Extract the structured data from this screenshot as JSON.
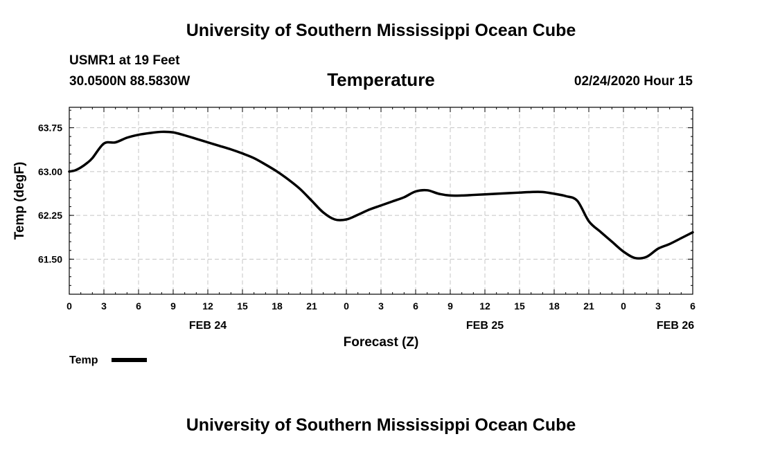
{
  "header": {
    "title": "University of Southern Mississippi Ocean Cube",
    "station": "USMR1 at 19 Feet",
    "location": "30.0500N 88.5830W",
    "date": "02/24/2020 Hour 15"
  },
  "footer": {
    "title": "University of Southern Mississippi Ocean Cube"
  },
  "chart_data": {
    "type": "line",
    "title": "Temperature",
    "xlabel": "Forecast (Z)",
    "ylabel": "Temp (degF)",
    "xlim": [
      0,
      54
    ],
    "ylim": [
      60.9,
      64.1
    ],
    "grid": true,
    "x_tick_hours": [
      0,
      3,
      6,
      9,
      12,
      15,
      18,
      21,
      24,
      27,
      30,
      33,
      36,
      39,
      42,
      45,
      48,
      51,
      54
    ],
    "x_tick_labels": [
      "0",
      "3",
      "6",
      "9",
      "12",
      "15",
      "18",
      "21",
      "0",
      "3",
      "6",
      "9",
      "12",
      "15",
      "18",
      "21",
      "0",
      "3",
      "6"
    ],
    "y_ticks": [
      61.5,
      62.25,
      63.0,
      63.75
    ],
    "y_tick_labels": [
      "61.50",
      "62.25",
      "63.00",
      "63.75"
    ],
    "date_labels": [
      {
        "hour": 12,
        "label": "FEB 24"
      },
      {
        "hour": 36,
        "label": "FEB 25"
      },
      {
        "hour": 52.5,
        "label": "FEB 26"
      }
    ],
    "legend": {
      "label": "Temp",
      "position": "bottom-left"
    },
    "series": [
      {
        "name": "Temp",
        "color": "#000000",
        "x": [
          0,
          0.5,
          1,
          1.5,
          2,
          3,
          4,
          5,
          6,
          7,
          8,
          9,
          10,
          11,
          12,
          13,
          14,
          15,
          16,
          17,
          18,
          19,
          20,
          21,
          22,
          23,
          24,
          25,
          26,
          27,
          28,
          29,
          30,
          31,
          32,
          33,
          34,
          35,
          36,
          37,
          38,
          39,
          40,
          41,
          42,
          43,
          44,
          45,
          46,
          47,
          48,
          49,
          50,
          51,
          52,
          53,
          54
        ],
        "values": [
          63.0,
          63.02,
          63.07,
          63.14,
          63.23,
          63.48,
          63.5,
          63.58,
          63.63,
          63.66,
          63.68,
          63.67,
          63.62,
          63.56,
          63.5,
          63.44,
          63.38,
          63.31,
          63.23,
          63.12,
          63.0,
          62.86,
          62.7,
          62.5,
          62.3,
          62.18,
          62.18,
          62.26,
          62.35,
          62.42,
          62.49,
          62.56,
          62.66,
          62.68,
          62.62,
          62.59,
          62.59,
          62.6,
          62.61,
          62.62,
          62.63,
          62.64,
          62.65,
          62.65,
          62.62,
          62.58,
          62.5,
          62.15,
          61.97,
          61.8,
          61.63,
          61.52,
          61.54,
          61.68,
          61.76,
          61.86,
          61.96
        ]
      }
    ]
  }
}
